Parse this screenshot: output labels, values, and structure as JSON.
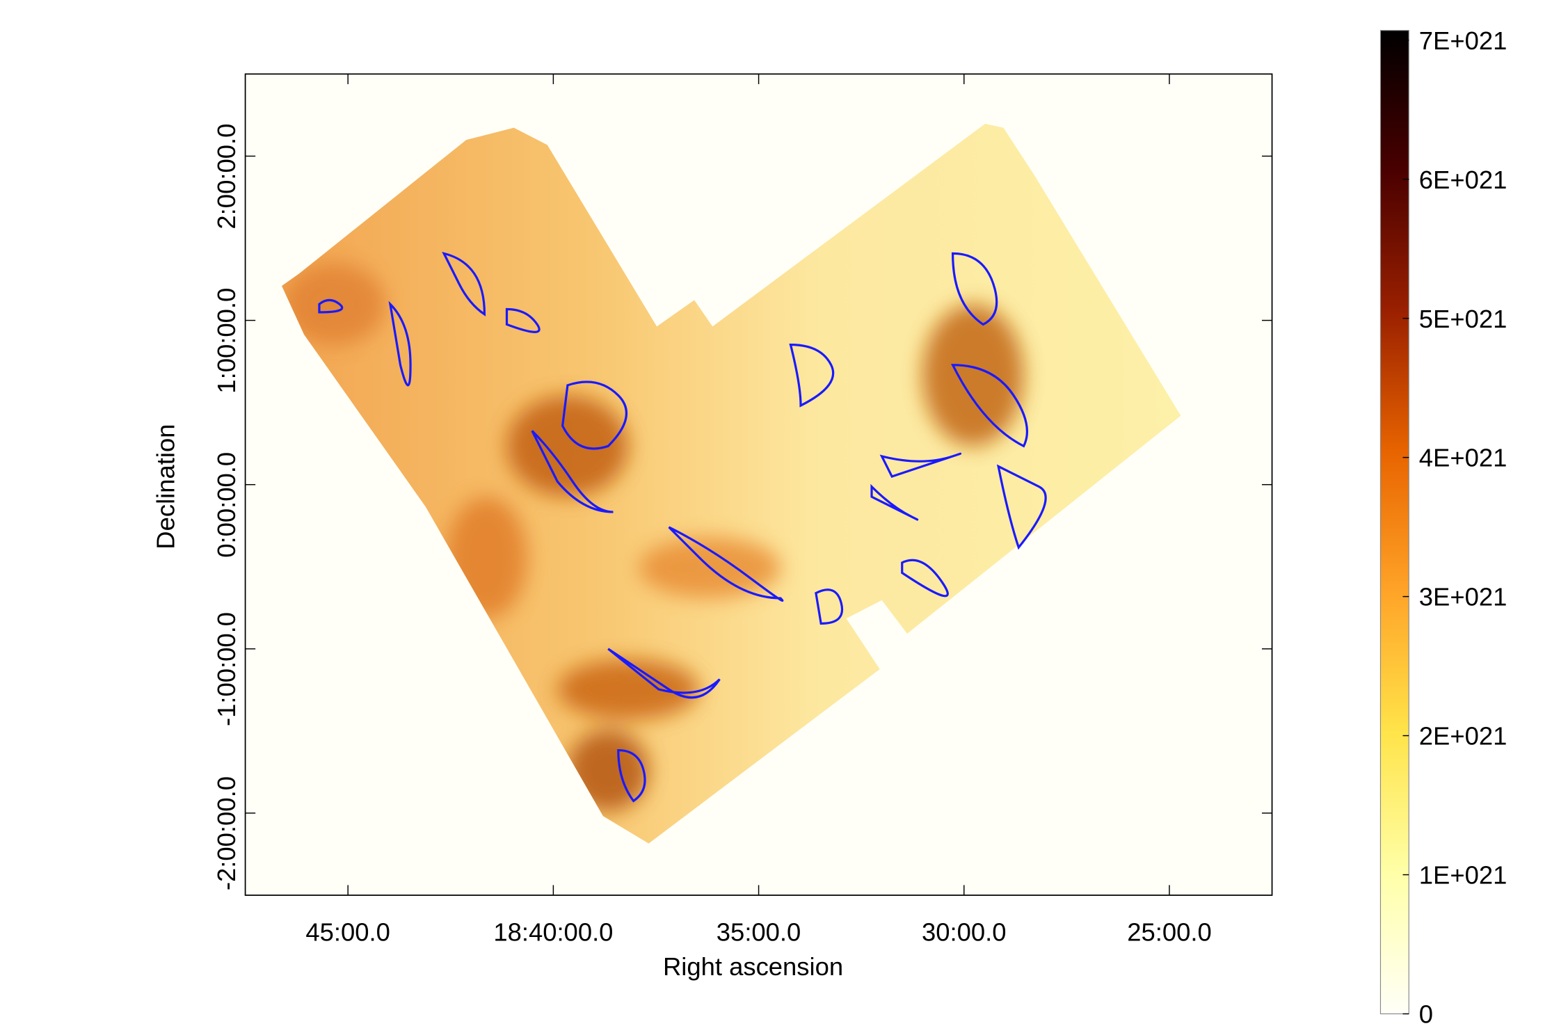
{
  "chart_data": {
    "type": "image",
    "xlabel": "Right ascension",
    "ylabel": "Declination",
    "xlim": [
      47.5,
      22.5
    ],
    "xticks": [
      {
        "value": 45,
        "label": "45:00.0"
      },
      {
        "value": 40,
        "label": "18:40:00.0"
      },
      {
        "value": 35,
        "label": "35:00.0"
      },
      {
        "value": 30,
        "label": "30:00.0"
      },
      {
        "value": 25,
        "label": "25:00.0"
      }
    ],
    "ylim": [
      -2.5,
      2.5
    ],
    "yticks": [
      {
        "value": 2,
        "label": "2:00:00.0"
      },
      {
        "value": 1,
        "label": "1:00:00.0"
      },
      {
        "value": 0,
        "label": "0:00:00.0"
      },
      {
        "value": -1,
        "label": "-1:00:00.0"
      },
      {
        "value": -2,
        "label": "-2:00:00.0"
      }
    ],
    "zlim": [
      0,
      7.07e+21
    ],
    "zticks": [
      0,
      {
        "value": 1e+21,
        "label": "1E+021"
      },
      {
        "value": 2e+21,
        "label": "2E+021"
      },
      {
        "value": 3e+21,
        "label": "3E+021"
      },
      {
        "value": 4e+21,
        "label": "4E+021"
      },
      {
        "value": 5e+21,
        "label": "5E+021"
      },
      {
        "value": 6e+21,
        "label": "6E+021"
      },
      {
        "value": 7e+21,
        "label": "7E+021"
      }
    ],
    "colormap": [
      "#fffff8",
      "#ffffa8",
      "#ffe44a",
      "#ffa428",
      "#e86400",
      "#9a2000",
      "#4a0000",
      "#000000"
    ],
    "contour_color": "#1a1aff"
  }
}
